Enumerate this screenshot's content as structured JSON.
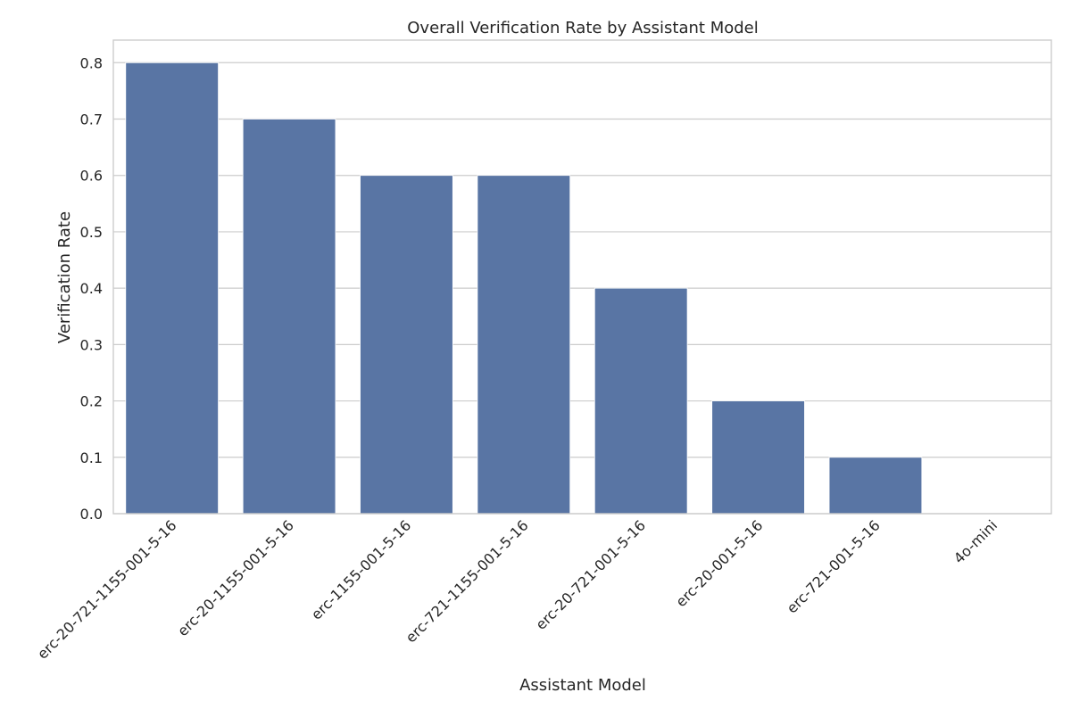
{
  "chart_data": {
    "type": "bar",
    "title": "Overall Verification Rate by Assistant Model",
    "xlabel": "Assistant Model",
    "ylabel": "Verification Rate",
    "categories": [
      "erc-20-721-1155-001-5-16",
      "erc-20-1155-001-5-16",
      "erc-1155-001-5-16",
      "erc-721-1155-001-5-16",
      "erc-20-721-001-5-16",
      "erc-20-001-5-16",
      "erc-721-001-5-16",
      "4o-mini"
    ],
    "values": [
      0.8,
      0.7,
      0.6,
      0.6,
      0.4,
      0.2,
      0.1,
      0.0
    ],
    "ylim": [
      0,
      0.84
    ],
    "yticks": [
      "0.0",
      "0.1",
      "0.2",
      "0.3",
      "0.4",
      "0.5",
      "0.6",
      "0.7",
      "0.8"
    ],
    "grid": true,
    "bar_color": "#5975a4",
    "grid_color": "#cccccc"
  }
}
